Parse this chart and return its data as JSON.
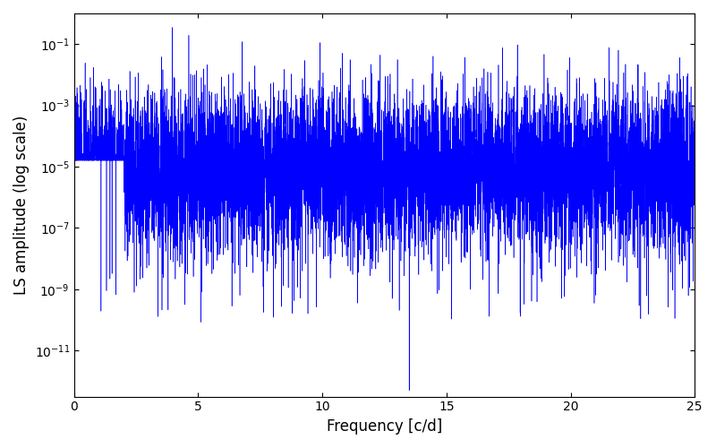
{
  "xlabel": "Frequency [c/d]",
  "ylabel": "LS amplitude (log scale)",
  "line_color": "blue",
  "xlim": [
    0,
    25
  ],
  "ylim_log": [
    -12.5,
    0
  ],
  "freq_max": 25.0,
  "n_points": 10000,
  "seed": 7,
  "background_color": "white",
  "figsize": [
    8.0,
    5.0
  ],
  "dpi": 100,
  "deep_trough_freq": 13.5,
  "deep_trough_val": 5e-13
}
